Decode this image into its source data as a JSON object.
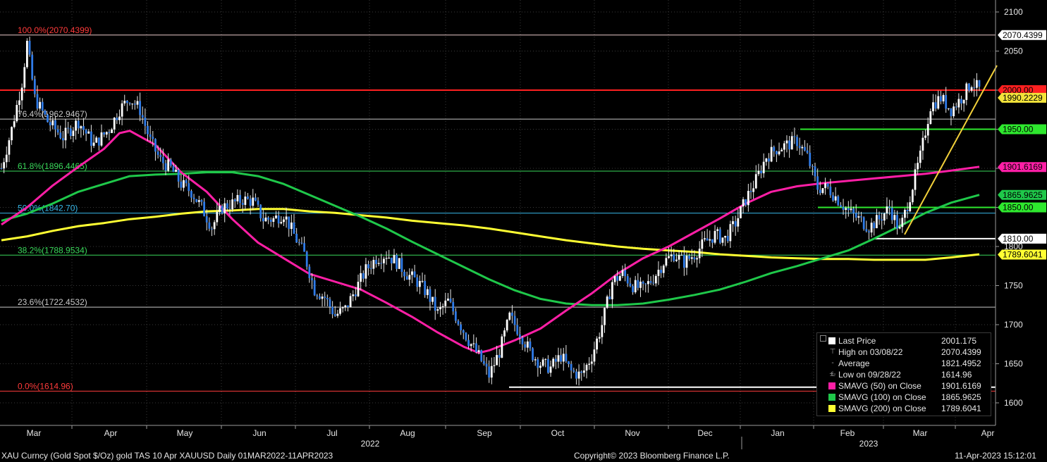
{
  "chart_data": {
    "type": "candlestick",
    "y_ticks": [
      "2100",
      "2050",
      "2000",
      "1950",
      "1900",
      "1850",
      "1800",
      "1750",
      "1700",
      "1650",
      "1600"
    ],
    "ylim": [
      1580,
      2110
    ],
    "months": [
      "Mar",
      "Apr",
      "May",
      "Jun",
      "Jul",
      "Aug",
      "Sep",
      "Oct",
      "Nov",
      "Dec",
      "Jan",
      "Feb",
      "Mar",
      "Apr"
    ],
    "years": [
      "2022",
      "2023"
    ],
    "fib_levels": [
      {
        "label": "100.0%(2070.4399)",
        "value": 2070.4399,
        "color": "#ff3b3b",
        "line": "#e8c8c8"
      },
      {
        "label": "76.4%(1962.9467)",
        "value": 1962.9467,
        "color": "#c8c8c8",
        "line": "#c8c8c8"
      },
      {
        "label": "61.8%(1896.4465)",
        "value": 1896.4465,
        "color": "#39d85a",
        "line": "#39d85a"
      },
      {
        "label": "50.0%(1842.70)",
        "value": 1842.7,
        "color": "#37b7e8",
        "line": "#37b7e8"
      },
      {
        "label": "38.2%(1788.9534)",
        "value": 1788.9534,
        "color": "#39d85a",
        "line": "#39d85a"
      },
      {
        "label": "23.6%(1722.4532)",
        "value": 1722.4532,
        "color": "#c8c8c8",
        "line": "#c8c8c8"
      },
      {
        "label": "0.0%(1614.96)",
        "value": 1614.96,
        "color": "#ff3b3b",
        "line": "#ff3b3b"
      }
    ],
    "tags": [
      {
        "text": "2070.4399",
        "value": 2070.4399,
        "bg": "#ffffff"
      },
      {
        "text": "2000.00",
        "value": 2000.0,
        "bg": "#ff2020"
      },
      {
        "text": "1990.2229",
        "value": 1990.2229,
        "bg": "#f2e33a"
      },
      {
        "text": "1950.00",
        "value": 1950.0,
        "bg": "#2ee82e"
      },
      {
        "text": "1901.6169",
        "value": 1901.6169,
        "bg": "#ff1fa6"
      },
      {
        "text": "1865.9625",
        "value": 1865.9625,
        "bg": "#1fc84a"
      },
      {
        "text": "1850.00",
        "value": 1850.0,
        "bg": "#2ee82e"
      },
      {
        "text": "1810.00",
        "value": 1810.0,
        "bg": "#ffffff"
      },
      {
        "text": "1789.6041",
        "value": 1789.6041,
        "bg": "#ffff33"
      }
    ],
    "horizontal_lines": [
      {
        "value": 2000.0,
        "color": "#ff2020"
      },
      {
        "value": 1950.0,
        "color": "#2ee82e"
      },
      {
        "value": 1850.0,
        "color": "#2ee82e"
      },
      {
        "value": 1810.0,
        "color": "#ffffff"
      }
    ],
    "price_path": [
      [
        0,
        1900
      ],
      [
        4,
        1950
      ],
      [
        8,
        2010
      ],
      [
        10,
        2060
      ],
      [
        13,
        1990
      ],
      [
        18,
        1960
      ],
      [
        24,
        1940
      ],
      [
        30,
        1960
      ],
      [
        36,
        1930
      ],
      [
        42,
        1950
      ],
      [
        46,
        1975
      ],
      [
        50,
        1990
      ],
      [
        54,
        1975
      ],
      [
        58,
        1935
      ],
      [
        62,
        1910
      ],
      [
        66,
        1900
      ],
      [
        70,
        1880
      ],
      [
        74,
        1870
      ],
      [
        78,
        1850
      ],
      [
        82,
        1825
      ],
      [
        86,
        1850
      ],
      [
        90,
        1855
      ],
      [
        94,
        1860
      ],
      [
        98,
        1858
      ],
      [
        102,
        1835
      ],
      [
        106,
        1835
      ],
      [
        110,
        1842
      ],
      [
        114,
        1815
      ],
      [
        118,
        1790
      ],
      [
        122,
        1745
      ],
      [
        126,
        1735
      ],
      [
        130,
        1712
      ],
      [
        134,
        1720
      ],
      [
        138,
        1745
      ],
      [
        142,
        1770
      ],
      [
        146,
        1785
      ],
      [
        150,
        1790
      ],
      [
        154,
        1780
      ],
      [
        158,
        1765
      ],
      [
        162,
        1755
      ],
      [
        166,
        1740
      ],
      [
        170,
        1715
      ],
      [
        174,
        1730
      ],
      [
        178,
        1705
      ],
      [
        182,
        1680
      ],
      [
        186,
        1660
      ],
      [
        190,
        1635
      ],
      [
        194,
        1665
      ],
      [
        198,
        1710
      ],
      [
        202,
        1690
      ],
      [
        206,
        1665
      ],
      [
        210,
        1650
      ],
      [
        214,
        1645
      ],
      [
        218,
        1660
      ],
      [
        222,
        1640
      ],
      [
        226,
        1635
      ],
      [
        230,
        1660
      ],
      [
        234,
        1700
      ],
      [
        238,
        1755
      ],
      [
        242,
        1765
      ],
      [
        246,
        1750
      ],
      [
        250,
        1745
      ],
      [
        254,
        1760
      ],
      [
        258,
        1780
      ],
      [
        262,
        1790
      ],
      [
        266,
        1780
      ],
      [
        270,
        1790
      ],
      [
        274,
        1805
      ],
      [
        278,
        1815
      ],
      [
        282,
        1810
      ],
      [
        286,
        1830
      ],
      [
        290,
        1860
      ],
      [
        294,
        1885
      ],
      [
        298,
        1915
      ],
      [
        302,
        1925
      ],
      [
        306,
        1930
      ],
      [
        310,
        1935
      ],
      [
        314,
        1915
      ],
      [
        318,
        1875
      ],
      [
        322,
        1875
      ],
      [
        326,
        1860
      ],
      [
        330,
        1845
      ],
      [
        334,
        1835
      ],
      [
        338,
        1825
      ],
      [
        342,
        1835
      ],
      [
        346,
        1850
      ],
      [
        350,
        1820
      ],
      [
        354,
        1865
      ],
      [
        358,
        1915
      ],
      [
        362,
        1980
      ],
      [
        366,
        1990
      ],
      [
        370,
        1975
      ],
      [
        374,
        1990
      ],
      [
        378,
        2010
      ],
      [
        381,
        2001
      ]
    ],
    "sma50": [
      [
        0,
        1828
      ],
      [
        10,
        1850
      ],
      [
        20,
        1878
      ],
      [
        30,
        1902
      ],
      [
        40,
        1925
      ],
      [
        46,
        1945
      ],
      [
        50,
        1948
      ],
      [
        60,
        1930
      ],
      [
        70,
        1895
      ],
      [
        80,
        1870
      ],
      [
        90,
        1835
      ],
      [
        100,
        1805
      ],
      [
        110,
        1785
      ],
      [
        120,
        1765
      ],
      [
        130,
        1755
      ],
      [
        140,
        1745
      ],
      [
        150,
        1728
      ],
      [
        160,
        1710
      ],
      [
        170,
        1690
      ],
      [
        180,
        1672
      ],
      [
        186,
        1664
      ],
      [
        190,
        1667
      ],
      [
        200,
        1680
      ],
      [
        210,
        1695
      ],
      [
        220,
        1718
      ],
      [
        230,
        1740
      ],
      [
        240,
        1765
      ],
      [
        250,
        1785
      ],
      [
        260,
        1800
      ],
      [
        270,
        1818
      ],
      [
        280,
        1836
      ],
      [
        290,
        1855
      ],
      [
        300,
        1870
      ],
      [
        310,
        1877
      ],
      [
        320,
        1881
      ],
      [
        330,
        1884
      ],
      [
        340,
        1887
      ],
      [
        350,
        1890
      ],
      [
        360,
        1893
      ],
      [
        370,
        1897
      ],
      [
        381,
        1902
      ]
    ],
    "sma100": [
      [
        0,
        1833
      ],
      [
        10,
        1842
      ],
      [
        20,
        1855
      ],
      [
        30,
        1870
      ],
      [
        40,
        1880
      ],
      [
        50,
        1890
      ],
      [
        60,
        1892
      ],
      [
        70,
        1893
      ],
      [
        80,
        1895
      ],
      [
        90,
        1895
      ],
      [
        100,
        1890
      ],
      [
        110,
        1880
      ],
      [
        120,
        1866
      ],
      [
        130,
        1852
      ],
      [
        140,
        1838
      ],
      [
        150,
        1823
      ],
      [
        160,
        1806
      ],
      [
        170,
        1790
      ],
      [
        180,
        1774
      ],
      [
        190,
        1758
      ],
      [
        200,
        1744
      ],
      [
        210,
        1733
      ],
      [
        220,
        1727
      ],
      [
        230,
        1725
      ],
      [
        240,
        1725
      ],
      [
        250,
        1727
      ],
      [
        260,
        1732
      ],
      [
        270,
        1738
      ],
      [
        280,
        1745
      ],
      [
        290,
        1755
      ],
      [
        300,
        1766
      ],
      [
        310,
        1775
      ],
      [
        320,
        1785
      ],
      [
        330,
        1795
      ],
      [
        340,
        1810
      ],
      [
        350,
        1826
      ],
      [
        360,
        1843
      ],
      [
        370,
        1856
      ],
      [
        381,
        1866
      ]
    ],
    "sma200": [
      [
        0,
        1808
      ],
      [
        10,
        1813
      ],
      [
        20,
        1820
      ],
      [
        30,
        1826
      ],
      [
        40,
        1830
      ],
      [
        50,
        1835
      ],
      [
        60,
        1838
      ],
      [
        70,
        1842
      ],
      [
        80,
        1845
      ],
      [
        90,
        1846
      ],
      [
        100,
        1848
      ],
      [
        110,
        1848
      ],
      [
        120,
        1845
      ],
      [
        130,
        1843
      ],
      [
        140,
        1840
      ],
      [
        150,
        1837
      ],
      [
        160,
        1833
      ],
      [
        170,
        1830
      ],
      [
        180,
        1827
      ],
      [
        190,
        1823
      ],
      [
        200,
        1818
      ],
      [
        210,
        1813
      ],
      [
        220,
        1808
      ],
      [
        230,
        1804
      ],
      [
        240,
        1800
      ],
      [
        250,
        1797
      ],
      [
        260,
        1795
      ],
      [
        270,
        1793
      ],
      [
        280,
        1790
      ],
      [
        290,
        1788
      ],
      [
        300,
        1786
      ],
      [
        310,
        1785
      ],
      [
        320,
        1784
      ],
      [
        330,
        1784
      ],
      [
        340,
        1783
      ],
      [
        350,
        1783
      ],
      [
        360,
        1783
      ],
      [
        370,
        1786
      ],
      [
        381,
        1790
      ]
    ],
    "trendline": [
      [
        355,
        1812
      ],
      [
        381,
        1960
      ]
    ]
  },
  "legend": {
    "items": [
      {
        "name": "Last Price",
        "value": "2001.175",
        "marker": "square",
        "color": "#ffffff"
      },
      {
        "name": "High on 03/08/22",
        "value": "2070.4399",
        "marker": "symbol",
        "symbol": "⊤",
        "color": "#9a9a9a"
      },
      {
        "name": "Average",
        "value": "1821.4952",
        "marker": "symbol",
        "symbol": "-+-",
        "color": "#9a9a9a"
      },
      {
        "name": "Low on 09/28/22",
        "value": "1614.96",
        "marker": "symbol",
        "symbol": "⊥",
        "color": "#9a9a9a"
      },
      {
        "name": "SMAVG (50)  on Close",
        "value": "1901.6169",
        "marker": "square",
        "color": "#ff1fa6"
      },
      {
        "name": "SMAVG (100)  on Close",
        "value": "1865.9625",
        "marker": "square",
        "color": "#1fc84a"
      },
      {
        "name": "SMAVG (200)  on Close",
        "value": "1789.6041",
        "marker": "square",
        "color": "#ffff33"
      }
    ]
  },
  "footer": {
    "left": "XAU Curncy (Gold Spot  $/Oz) gold TAS 10 Apr XAUUSD  Daily 01MAR2022-11APR2023",
    "center": "Copyright© 2023 Bloomberg Finance L.P.",
    "right": "11-Apr-2023 15:12:01"
  },
  "colors": {
    "candle": "#2f7be8",
    "candle_wick": "#e6e6e6",
    "grid": "#3a3a3a",
    "trendline": "#f2d03a"
  }
}
